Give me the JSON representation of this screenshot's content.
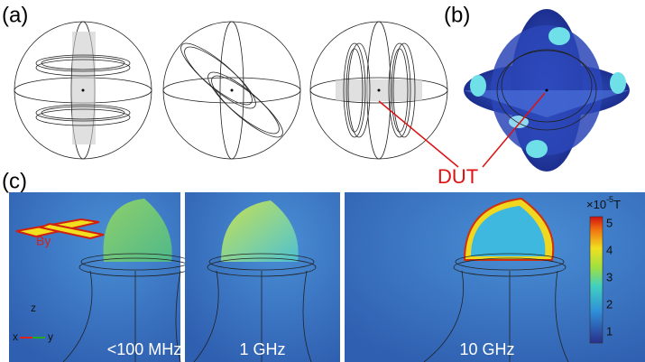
{
  "panels": {
    "a": {
      "label": "(a)"
    },
    "b": {
      "label": "(b)"
    },
    "c": {
      "label": "(c)",
      "captions": [
        "<100 MHz",
        "1 GHz",
        "10 GHz"
      ],
      "field_label": "By",
      "axes": {
        "z": "z",
        "x": "x",
        "y": "y"
      },
      "colorbar": {
        "base": "×10",
        "exponent": "-5",
        "unit": "T",
        "ticks": [
          1,
          2,
          3,
          4,
          5
        ]
      }
    }
  },
  "annotation": "DUT"
}
